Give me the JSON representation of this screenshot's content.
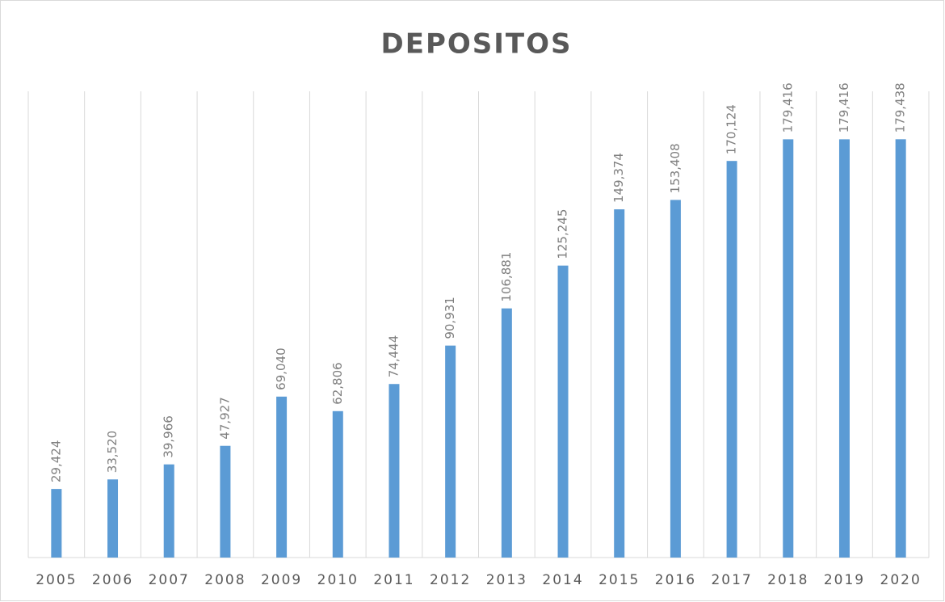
{
  "chart_data": {
    "type": "bar",
    "title": "DEPOSITOS",
    "categories": [
      "2005",
      "2006",
      "2007",
      "2008",
      "2009",
      "2010",
      "2011",
      "2012",
      "2013",
      "2014",
      "2015",
      "2016",
      "2017",
      "2018",
      "2019",
      "2020"
    ],
    "values": [
      29424,
      33520,
      39966,
      47927,
      69040,
      62806,
      74444,
      90931,
      106881,
      125245,
      149374,
      153408,
      170124,
      179416,
      179416,
      179438
    ],
    "value_labels": [
      "29,424",
      "33,520",
      "39,966",
      "47,927",
      "69,040",
      "62,806",
      "74,444",
      "90,931",
      "106,881",
      "125,245",
      "149,374",
      "153,408",
      "170,124",
      "179,416",
      "179,416",
      "179,438"
    ],
    "color": "#5b9bd5",
    "ylim": [
      0,
      200000
    ]
  }
}
